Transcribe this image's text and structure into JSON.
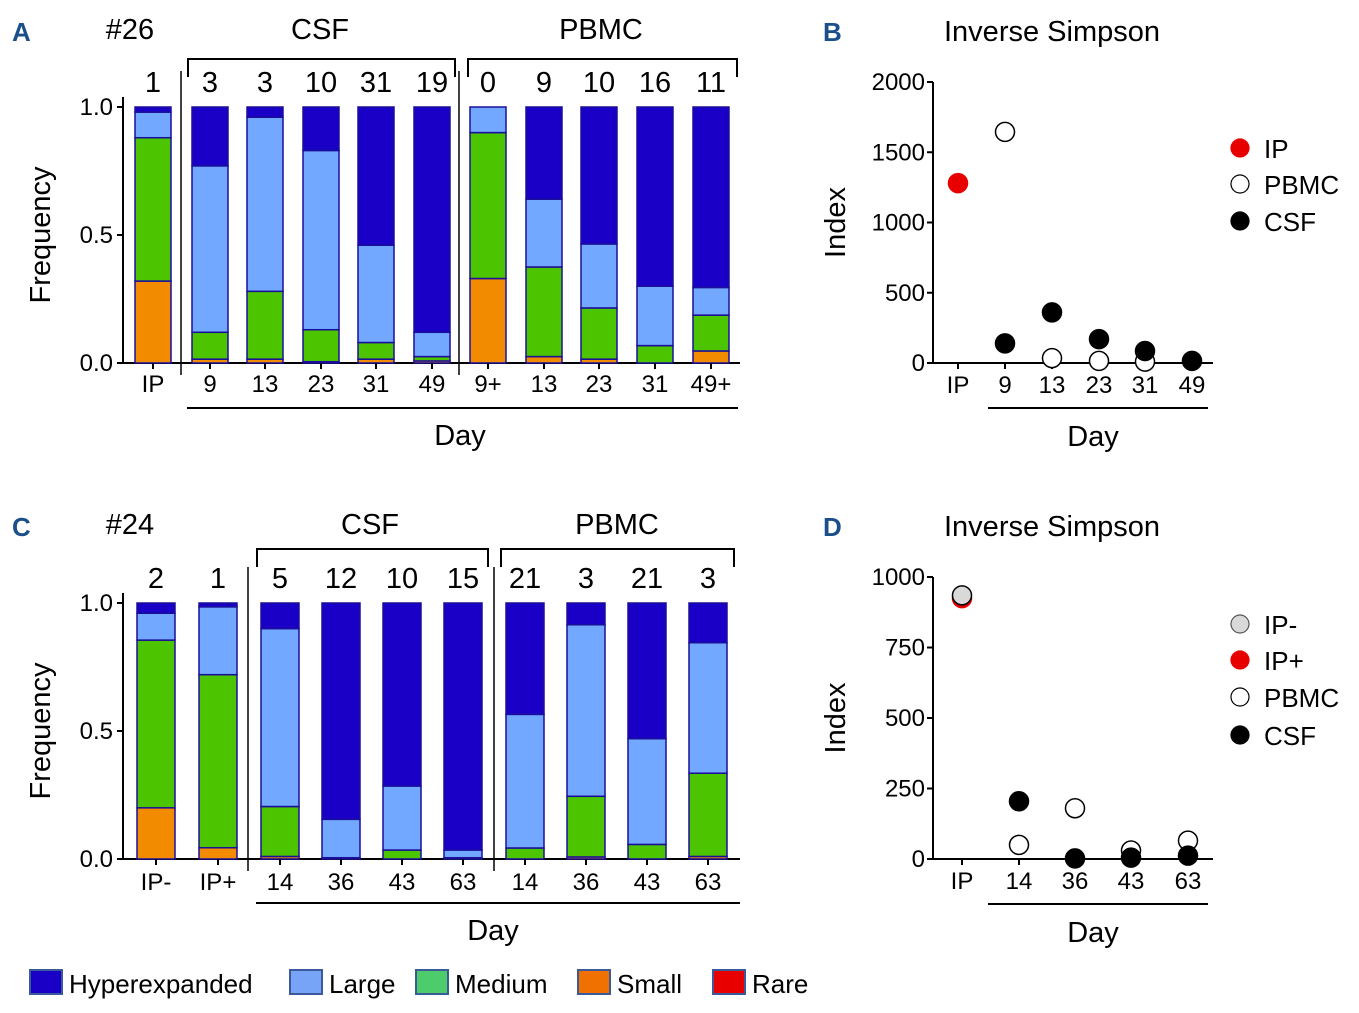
{
  "colors": {
    "hyperexpanded": "#1a00c6",
    "large": "#72a8ff",
    "medium": "#4cc400",
    "small": "#f28b00",
    "rare": "#e80000",
    "bar_outline": "#1a0f99",
    "panel_letter": "#1a4f8a",
    "ip_red": "#e80000",
    "ip_minus_gray": "#d9d9d9"
  },
  "legend": {
    "items": [
      {
        "key": "hyperexpanded",
        "label": "Hyperexpanded",
        "color": "#1a00c6"
      },
      {
        "key": "large",
        "label": "Large",
        "color": "#78a4f8"
      },
      {
        "key": "medium",
        "label": "Medium",
        "color": "#4ccc6a"
      },
      {
        "key": "small",
        "label": "Small",
        "color": "#f07000"
      },
      {
        "key": "rare",
        "label": "Rare",
        "color": "#e80000"
      }
    ]
  },
  "chart_data": [
    {
      "panel": "A",
      "type": "bar",
      "stacked": true,
      "patient": "#26",
      "group_labels": [
        "CSF",
        "PBMC"
      ],
      "ylabel": "Frequency",
      "xlabel": "Day",
      "ylim": [
        0,
        1
      ],
      "yticks": [
        "0.0",
        "0.5",
        "1.0"
      ],
      "categories": [
        "IP",
        "9",
        "13",
        "23",
        "31",
        "49",
        "9+",
        "13",
        "23",
        "31",
        "49+"
      ],
      "groups": [
        "IP",
        "CSF",
        "CSF",
        "CSF",
        "CSF",
        "CSF",
        "PBMC",
        "PBMC",
        "PBMC",
        "PBMC",
        "PBMC"
      ],
      "counts": [
        "1",
        "3",
        "3",
        "10",
        "31",
        "19",
        "0",
        "9",
        "10",
        "16",
        "11"
      ],
      "series": [
        {
          "name": "Rare",
          "values": [
            0,
            0,
            0,
            0,
            0,
            0,
            0,
            0,
            0,
            0,
            0
          ]
        },
        {
          "name": "Small",
          "values": [
            0.32,
            0.015,
            0.015,
            0.005,
            0.015,
            0.008,
            0.33,
            0.025,
            0.015,
            0.0,
            0.047
          ]
        },
        {
          "name": "Medium",
          "values": [
            0.56,
            0.105,
            0.265,
            0.125,
            0.065,
            0.017,
            0.57,
            0.35,
            0.2,
            0.068,
            0.14
          ]
        },
        {
          "name": "Large",
          "values": [
            0.1,
            0.65,
            0.68,
            0.7,
            0.38,
            0.095,
            0.1,
            0.265,
            0.25,
            0.232,
            0.108
          ]
        },
        {
          "name": "Hyperexpanded",
          "values": [
            0.02,
            0.23,
            0.04,
            0.17,
            0.54,
            0.88,
            0.0,
            0.36,
            0.535,
            0.7,
            0.705
          ]
        }
      ]
    },
    {
      "panel": "B",
      "type": "scatter",
      "title": "Inverse Simpson",
      "ylabel": "Index",
      "xlabel": "Day",
      "ylim": [
        0,
        2000
      ],
      "yticks": [
        "0",
        "500",
        "1000",
        "1500",
        "2000"
      ],
      "categories": [
        "IP",
        "9",
        "13",
        "23",
        "31",
        "49"
      ],
      "series": [
        {
          "name": "IP",
          "style": "red",
          "points": [
            {
              "x": "IP",
              "y": 1280
            }
          ]
        },
        {
          "name": "PBMC",
          "style": "open",
          "points": [
            {
              "x": "9",
              "y": 1645
            },
            {
              "x": "13",
              "y": 35
            },
            {
              "x": "23",
              "y": 15
            },
            {
              "x": "31",
              "y": 10
            }
          ]
        },
        {
          "name": "CSF",
          "style": "filled",
          "points": [
            {
              "x": "9",
              "y": 140
            },
            {
              "x": "13",
              "y": 360
            },
            {
              "x": "23",
              "y": 170
            },
            {
              "x": "31",
              "y": 85
            },
            {
              "x": "49",
              "y": 15
            }
          ]
        }
      ]
    },
    {
      "panel": "C",
      "type": "bar",
      "stacked": true,
      "patient": "#24",
      "group_labels": [
        "CSF",
        "PBMC"
      ],
      "ylabel": "Frequency",
      "xlabel": "Day",
      "ylim": [
        0,
        1
      ],
      "yticks": [
        "0.0",
        "0.5",
        "1.0"
      ],
      "categories": [
        "IP-",
        "IP+",
        "14",
        "36",
        "43",
        "63",
        "14",
        "36",
        "43",
        "63"
      ],
      "groups": [
        "IP",
        "IP",
        "CSF",
        "CSF",
        "CSF",
        "CSF",
        "PBMC",
        "PBMC",
        "PBMC",
        "PBMC"
      ],
      "counts": [
        "2",
        "1",
        "5",
        "12",
        "10",
        "15",
        "21",
        "3",
        "21",
        "3"
      ],
      "series": [
        {
          "name": "Rare",
          "values": [
            0,
            0,
            0,
            0,
            0,
            0,
            0,
            0,
            0,
            0
          ]
        },
        {
          "name": "Small",
          "values": [
            0.2,
            0.044,
            0.01,
            0.0,
            0.0,
            0.0,
            0.0,
            0.008,
            0.0,
            0.01
          ]
        },
        {
          "name": "Medium",
          "values": [
            0.655,
            0.676,
            0.195,
            0.005,
            0.035,
            0.005,
            0.043,
            0.237,
            0.057,
            0.325
          ]
        },
        {
          "name": "Large",
          "values": [
            0.105,
            0.265,
            0.695,
            0.15,
            0.25,
            0.03,
            0.522,
            0.67,
            0.413,
            0.51
          ]
        },
        {
          "name": "Hyperexpanded",
          "values": [
            0.04,
            0.015,
            0.1,
            0.845,
            0.715,
            0.965,
            0.435,
            0.085,
            0.53,
            0.155
          ]
        }
      ]
    },
    {
      "panel": "D",
      "type": "scatter",
      "title": "Inverse Simpson",
      "ylabel": "Index",
      "xlabel": "Day",
      "ylim": [
        0,
        1000
      ],
      "yticks": [
        "0",
        "250",
        "500",
        "750",
        "1000"
      ],
      "categories": [
        "IP",
        "14",
        "36",
        "43",
        "63"
      ],
      "series": [
        {
          "name": "IP-",
          "style": "gray",
          "points": [
            {
              "x": "IP",
              "y": 935
            }
          ]
        },
        {
          "name": "IP+",
          "style": "red",
          "points": [
            {
              "x": "IP",
              "y": 925
            }
          ]
        },
        {
          "name": "PBMC",
          "style": "open",
          "points": [
            {
              "x": "14",
              "y": 50
            },
            {
              "x": "36",
              "y": 180
            },
            {
              "x": "43",
              "y": 30
            },
            {
              "x": "63",
              "y": 65
            }
          ]
        },
        {
          "name": "CSF",
          "style": "filled",
          "points": [
            {
              "x": "14",
              "y": 205
            },
            {
              "x": "36",
              "y": 2
            },
            {
              "x": "43",
              "y": 5
            },
            {
              "x": "63",
              "y": 12
            }
          ]
        }
      ]
    }
  ]
}
